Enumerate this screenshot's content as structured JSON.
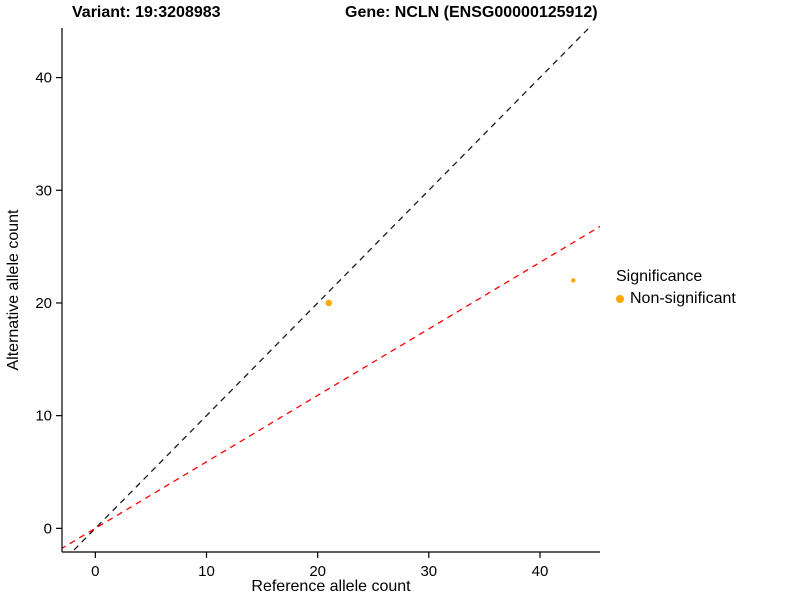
{
  "chart_data": {
    "type": "scatter",
    "title_left": "Variant: 19:3208983",
    "title_right": "Gene: NCLN (ENSG00000125912)",
    "xlabel": "Reference allele count",
    "ylabel": "Alternative allele count",
    "xlim": [
      -3,
      45.4
    ],
    "ylim": [
      -2.1,
      44.4
    ],
    "xticks": [
      0,
      10,
      20,
      30,
      40
    ],
    "yticks": [
      0,
      10,
      20,
      30,
      40
    ],
    "grid": false,
    "point_color": "#FFA500",
    "points": [
      {
        "x": 21,
        "y": 20,
        "r": 3.2
      },
      {
        "x": 43,
        "y": 22,
        "r": 2.2
      }
    ],
    "lines": [
      {
        "name": "identity-diagonal",
        "slope": 1,
        "intercept": 0,
        "color": "#1a1a1a",
        "dash": "6 5"
      },
      {
        "name": "allele-ratio",
        "slope": 0.59,
        "intercept": 0,
        "color": "#ff0000",
        "dash": "6 5"
      }
    ],
    "legend": {
      "position": "right",
      "title": "Significance",
      "items": [
        {
          "label": "Non-significant",
          "color": "#FFA500"
        }
      ]
    }
  }
}
